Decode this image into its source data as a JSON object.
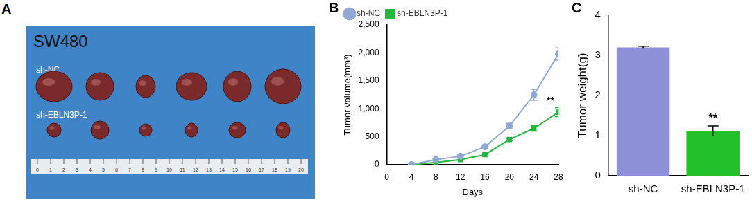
{
  "photo": {
    "panel_label": "A",
    "title": "SW480",
    "groups": [
      "sh-NC",
      "sh-EBLN3P-1"
    ],
    "tumor_counts": [
      6,
      6
    ],
    "ruler_ticks": [
      0,
      1,
      2,
      3,
      4,
      5,
      6,
      7,
      8,
      9,
      10,
      11,
      12,
      13,
      14,
      15,
      16,
      17,
      18,
      19,
      20
    ]
  },
  "chart_data": [
    {
      "type": "line",
      "panel_label": "B",
      "x_label": "Days",
      "y_label": "Tumor volume(mm³)",
      "x": [
        4,
        8,
        12,
        16,
        20,
        24,
        28
      ],
      "xlim": [
        0,
        28
      ],
      "xticks": [
        0,
        4,
        8,
        12,
        16,
        20,
        24,
        28
      ],
      "ylim": [
        0,
        2500
      ],
      "yticks": [
        0,
        500,
        1000,
        1500,
        2000,
        2500
      ],
      "grid": false,
      "legend": "top-left",
      "series": [
        {
          "name": "sh-NC",
          "color": "#8fa8d8",
          "marker": "circle",
          "values": [
            0,
            90,
            150,
            320,
            690,
            1250,
            1980
          ],
          "errors": [
            0,
            0,
            0,
            0,
            50,
            100,
            110
          ]
        },
        {
          "name": "sh-EBLN3P-1",
          "color": "#1fba3a",
          "marker": "square",
          "values": [
            0,
            40,
            90,
            180,
            450,
            650,
            940
          ],
          "errors": [
            0,
            0,
            0,
            0,
            20,
            50,
            80
          ],
          "significance": "**"
        }
      ]
    },
    {
      "type": "bar",
      "panel_label": "C",
      "y_label": "Tumor weight(g)",
      "categories": [
        "sh-NC",
        "sh-EBLN3P-1"
      ],
      "values": [
        3.2,
        1.12
      ],
      "errors": [
        0.03,
        0.12
      ],
      "colors": [
        "#8e90d8",
        "#22c02a"
      ],
      "significance": [
        null,
        "**"
      ],
      "ylim": [
        0,
        4
      ],
      "yticks": [
        0,
        1,
        2,
        3,
        4
      ],
      "grid": false
    }
  ]
}
